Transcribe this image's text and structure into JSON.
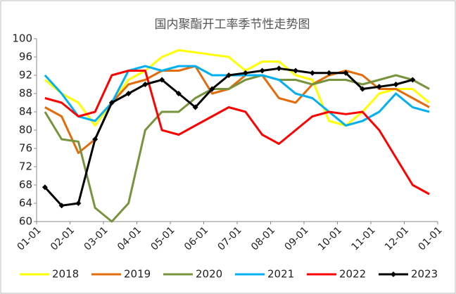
{
  "chart_data": {
    "type": "line",
    "title": "国内聚酯开工率季节性走势图",
    "x": [
      0.25,
      0.75,
      1.25,
      1.75,
      2.25,
      2.75,
      3.25,
      3.75,
      4.25,
      4.75,
      5.25,
      5.75,
      6.25,
      6.75,
      7.25,
      7.75,
      8.25,
      8.75,
      9.25,
      9.75,
      10.25,
      10.75,
      11.25,
      11.75
    ],
    "xlim": [
      0,
      12
    ],
    "xticks": [
      {
        "value": 0,
        "label": "01-01"
      },
      {
        "value": 1,
        "label": "02-01"
      },
      {
        "value": 2,
        "label": "03-01"
      },
      {
        "value": 3,
        "label": "04-01"
      },
      {
        "value": 4,
        "label": "05-01"
      },
      {
        "value": 5,
        "label": "06-01"
      },
      {
        "value": 6,
        "label": "07-01"
      },
      {
        "value": 7,
        "label": "08-01"
      },
      {
        "value": 8,
        "label": "09-01"
      },
      {
        "value": 9,
        "label": "10-01"
      },
      {
        "value": 10,
        "label": "11-01"
      },
      {
        "value": 11,
        "label": "12-01"
      },
      {
        "value": 12,
        "label": "01-01"
      }
    ],
    "ylim": [
      60,
      100
    ],
    "yticks": [
      60,
      64,
      68,
      72,
      76,
      80,
      84,
      88,
      92,
      96,
      100
    ],
    "series": [
      {
        "name": "2018",
        "color": "#ffff00",
        "values": [
          91,
          88,
          86,
          81,
          86,
          91,
          93,
          96,
          97.5,
          97,
          96.5,
          96,
          93,
          95,
          95,
          92,
          91,
          82,
          81,
          84,
          88,
          89,
          89,
          86
        ]
      },
      {
        "name": "2019",
        "color": "#e36c0a",
        "values": [
          85,
          83,
          75,
          78,
          86,
          90,
          91,
          93,
          93,
          94,
          88,
          89,
          92,
          92,
          87,
          86,
          90,
          92,
          93,
          92,
          89,
          89,
          87,
          85
        ]
      },
      {
        "name": "2020",
        "color": "#77933c",
        "values": [
          84,
          78,
          77.5,
          63,
          60,
          64,
          80,
          84,
          84,
          87,
          89,
          89,
          91,
          92,
          91,
          91,
          90,
          91,
          91,
          90,
          91,
          92,
          91,
          89
        ]
      },
      {
        "name": "2021",
        "color": "#00b0f0",
        "values": [
          92,
          88,
          83,
          82,
          86,
          93,
          94,
          93,
          94,
          94,
          92,
          92,
          92,
          92,
          91,
          88,
          87,
          84,
          81,
          82,
          84,
          88,
          85,
          84
        ]
      },
      {
        "name": "2022",
        "color": "#ff0000",
        "values": [
          87,
          86,
          83,
          84,
          92,
          93,
          93,
          80,
          79,
          81,
          83,
          85,
          84,
          79,
          77,
          80,
          83,
          84,
          83.5,
          84,
          80,
          74,
          68,
          66
        ]
      },
      {
        "name": "2023",
        "color": "#000000",
        "marker": "diamond",
        "values": [
          67.5,
          63.5,
          64,
          78,
          86,
          88,
          90,
          91,
          88,
          85,
          89,
          92,
          92.5,
          93,
          93.5,
          93,
          92.5,
          92.5,
          92.5,
          89,
          89.5,
          90,
          91,
          null
        ]
      }
    ]
  }
}
